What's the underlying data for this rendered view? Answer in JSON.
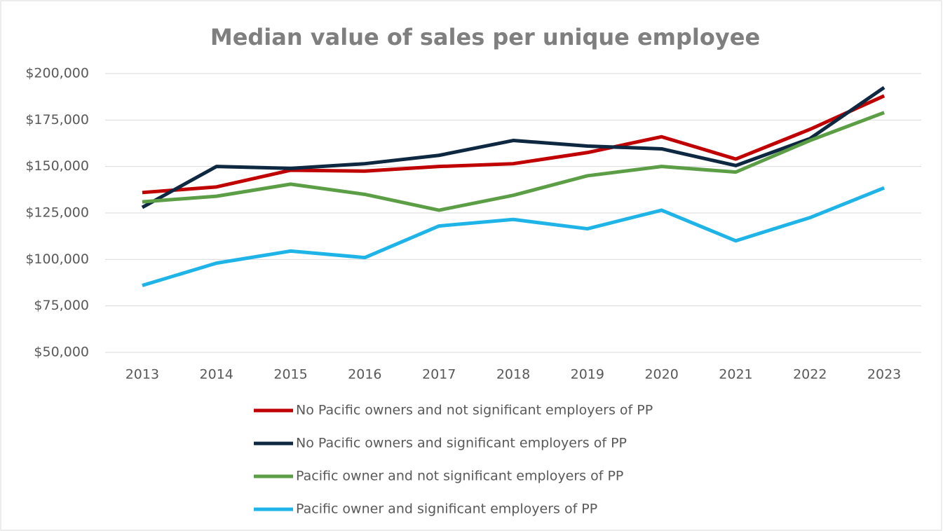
{
  "chart_data": {
    "type": "line",
    "title": "Median value of sales per unique employee",
    "categories": [
      "2013",
      "2014",
      "2015",
      "2016",
      "2017",
      "2018",
      "2019",
      "2020",
      "2021",
      "2022",
      "2023"
    ],
    "series": [
      {
        "name": "No Pacific owners and not significant employers of PP",
        "color": "#c00000",
        "values": [
          136000,
          139000,
          148000,
          147500,
          150000,
          151500,
          157500,
          166000,
          154000,
          170000,
          188000
        ]
      },
      {
        "name": "No Pacific owners and significant employers of PP",
        "color": "#0e2841",
        "values": [
          128000,
          150000,
          149000,
          151500,
          156000,
          164000,
          161000,
          159500,
          150500,
          165000,
          192500
        ]
      },
      {
        "name": "Pacific owner and not significant employers of PP",
        "color": "#5b9e45",
        "values": [
          131000,
          134000,
          140500,
          135000,
          126500,
          134500,
          145000,
          150000,
          147000,
          164000,
          179000
        ]
      },
      {
        "name": "Pacific owner and significant employers of PP",
        "color": "#1fb4e8",
        "values": [
          86000,
          98000,
          104500,
          101000,
          118000,
          121500,
          116500,
          126500,
          110000,
          122500,
          138500
        ]
      }
    ],
    "ylim": [
      50000,
      200000
    ],
    "yticks": [
      {
        "value": 50000,
        "label": "$50,000"
      },
      {
        "value": 75000,
        "label": "$75,000"
      },
      {
        "value": 100000,
        "label": "$100,000"
      },
      {
        "value": 125000,
        "label": "$125,000"
      },
      {
        "value": 150000,
        "label": "$150,000"
      },
      {
        "value": 175000,
        "label": "$175,000"
      },
      {
        "value": 200000,
        "label": "$200,000"
      }
    ],
    "grid": true,
    "legend": "bottom"
  }
}
